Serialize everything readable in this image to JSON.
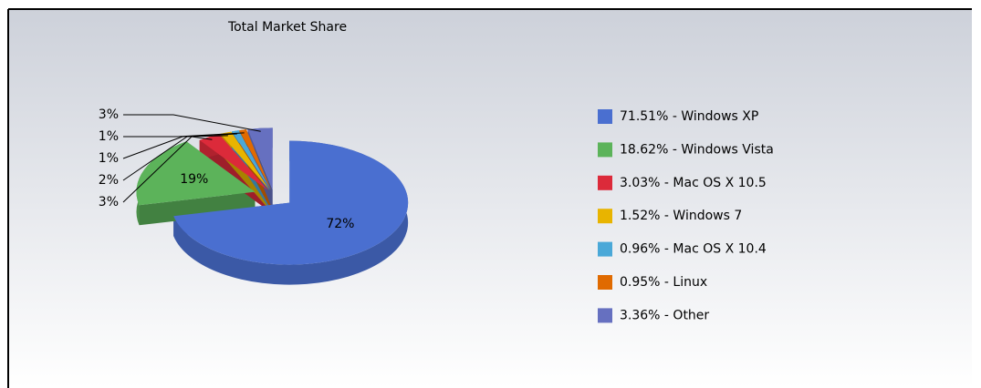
{
  "chart_data": {
    "type": "pie",
    "title": "Total Market Share",
    "labels": [
      "71.51% - Windows XP",
      "18.62% - Windows Vista",
      "3.03% - Mac OS X 10.5",
      "1.52% - Windows 7",
      "0.96% - Mac OS X 10.4",
      "0.95% - Linux",
      "3.36% - Other"
    ],
    "values": [
      71.51,
      18.62,
      3.03,
      1.52,
      0.96,
      0.95,
      3.36
    ],
    "value_labels": [
      "72%",
      "19%",
      "3%",
      "2%",
      "1%",
      "1%",
      "3%"
    ],
    "colors": [
      "#4a6fd0",
      "#5cb35a",
      "#dc2a3a",
      "#e8b400",
      "#4aa8d8",
      "#e06a00",
      "#6670c0"
    ],
    "legend": "right"
  }
}
